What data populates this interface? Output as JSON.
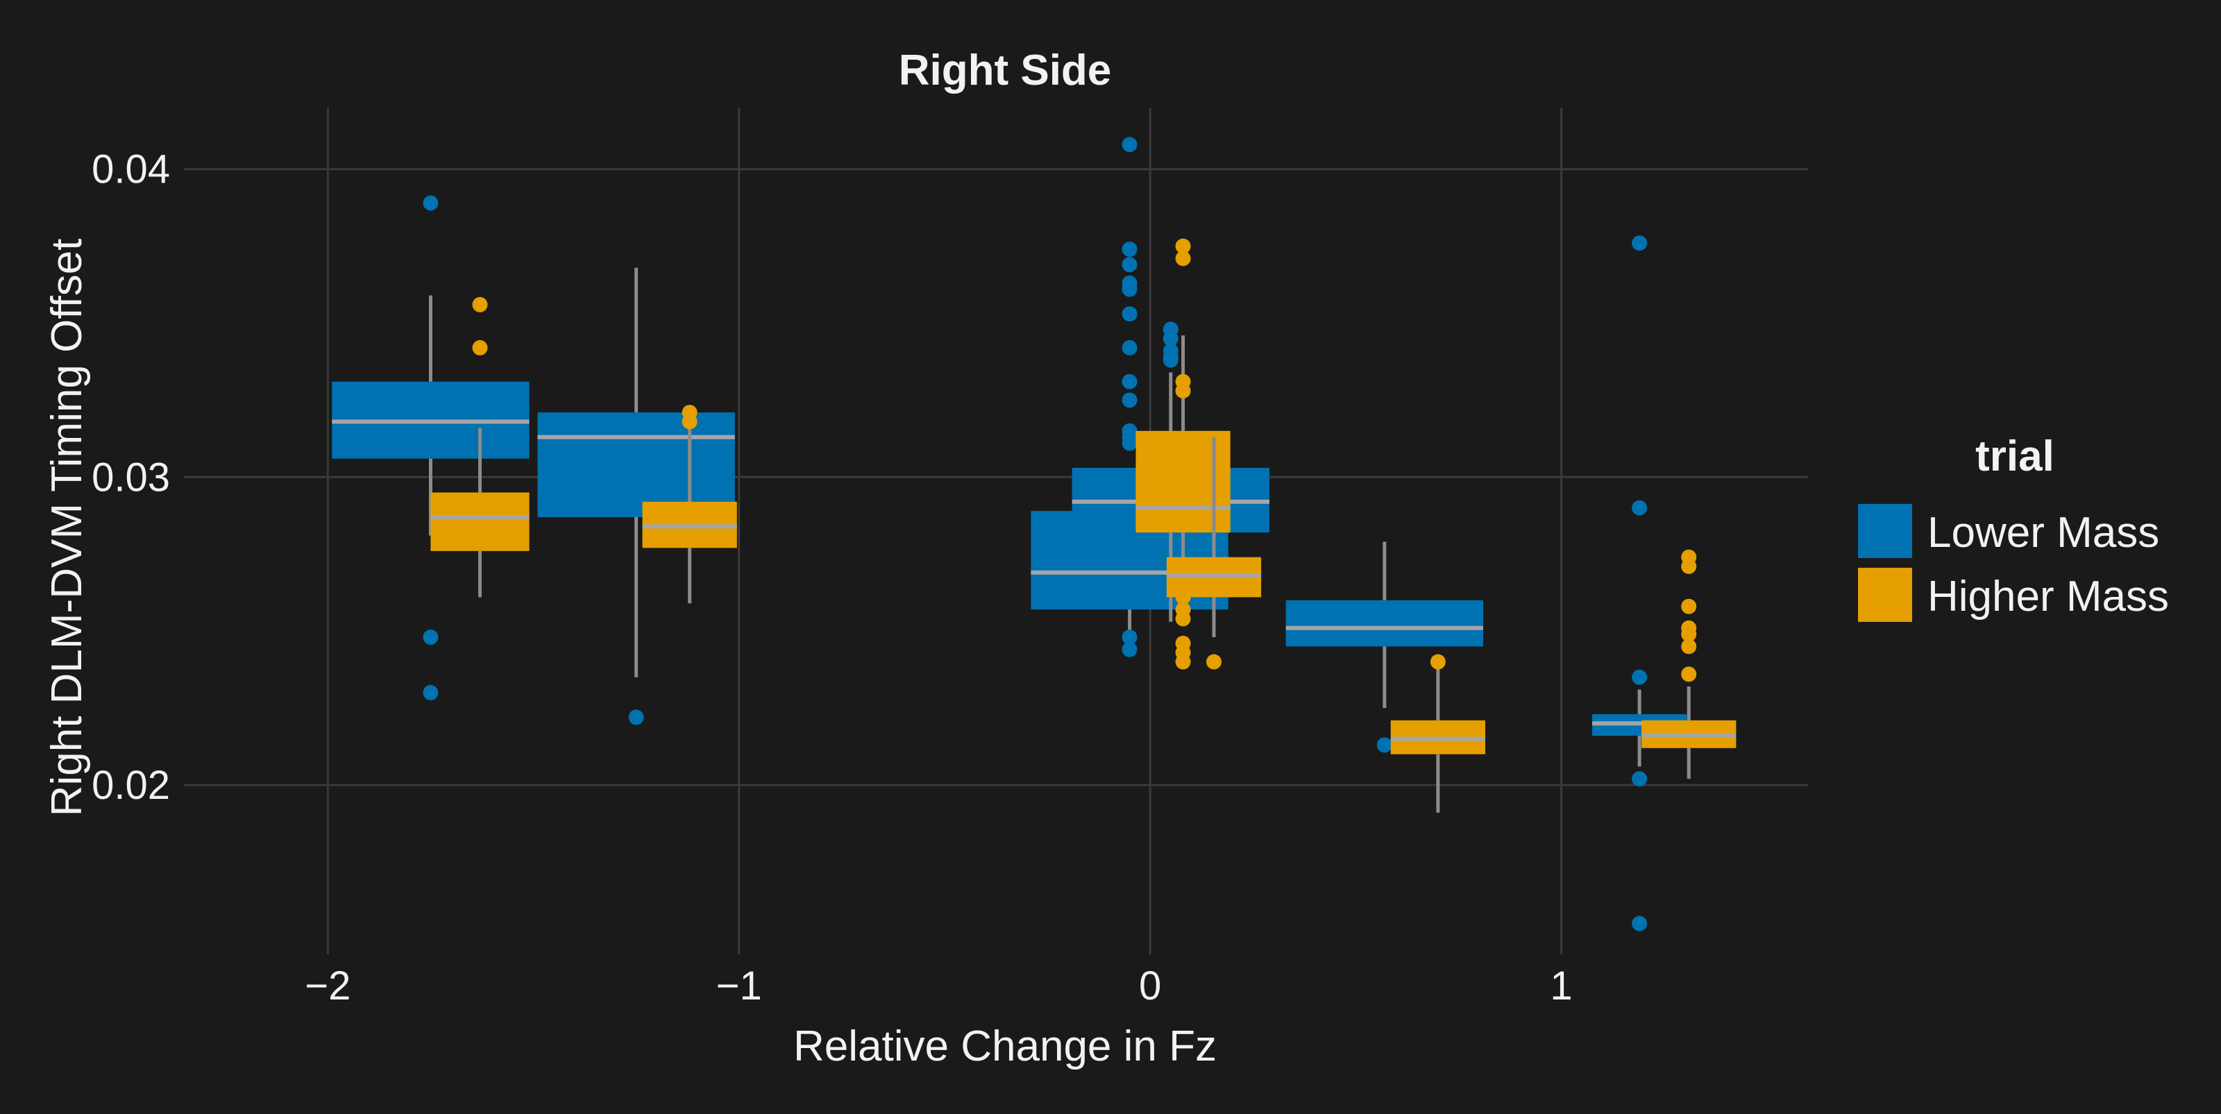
{
  "colors": {
    "background": "#1a1a1a",
    "grid": "#3a3a3a",
    "text": "#f2f2f2",
    "whisker": "#8c8c8c",
    "median": "#a6a6a6",
    "lower_mass": "#0072b2",
    "higher_mass": "#e69f00"
  },
  "chart_data": {
    "type": "boxplot",
    "title": "Right Side",
    "xlabel": "Relative Change in Fz",
    "ylabel": "Right DLM-DVM Timing Offset",
    "xlim": [
      -2.35,
      1.6
    ],
    "ylim": [
      0.0145,
      0.042
    ],
    "x_ticks": [
      -2,
      -1,
      0,
      1
    ],
    "x_tick_labels": [
      "−2",
      "−1",
      "0",
      "1"
    ],
    "y_ticks": [
      0.02,
      0.03,
      0.04
    ],
    "y_tick_labels": [
      "0.02",
      "0.03",
      "0.04"
    ],
    "grid": true,
    "legend": {
      "title": "trial",
      "position": "right",
      "entries": [
        {
          "label": "Lower Mass",
          "color_key": "lower_mass"
        },
        {
          "label": "Higher Mass",
          "color_key": "higher_mass"
        }
      ]
    },
    "groups": [
      {
        "x": -1.75,
        "width": 0.48,
        "series": "lower_mass",
        "q1": 0.0306,
        "median": 0.0318,
        "q3": 0.0331,
        "whisker_low": 0.0281,
        "whisker_high": 0.0359,
        "outliers": [
          0.0389,
          0.0248,
          0.023
        ]
      },
      {
        "x": -1.63,
        "width": 0.24,
        "series": "higher_mass",
        "q1": 0.0276,
        "median": 0.0287,
        "q3": 0.0295,
        "whisker_low": 0.0261,
        "whisker_high": 0.0316,
        "outliers": [
          0.0356,
          0.0342
        ]
      },
      {
        "x": -1.25,
        "width": 0.48,
        "series": "lower_mass",
        "q1": 0.0287,
        "median": 0.0313,
        "q3": 0.0321,
        "whisker_low": 0.0235,
        "whisker_high": 0.0368,
        "outliers": [
          0.0222
        ]
      },
      {
        "x": -1.12,
        "width": 0.23,
        "series": "higher_mass",
        "q1": 0.0277,
        "median": 0.0284,
        "q3": 0.0292,
        "whisker_low": 0.0259,
        "whisker_high": 0.0316,
        "outliers": [
          0.0321,
          0.0318
        ]
      },
      {
        "x": -0.05,
        "width": 0.48,
        "series": "lower_mass",
        "q1": 0.0257,
        "median": 0.0269,
        "q3": 0.0289,
        "whisker_low": 0.0247,
        "whisker_high": 0.0303,
        "outliers": [
          0.0408,
          0.0374,
          0.0369,
          0.0363,
          0.0361,
          0.0353,
          0.0342,
          0.0331,
          0.0325,
          0.0315,
          0.0313,
          0.0311,
          0.0248,
          0.0244
        ]
      },
      {
        "x": 0.05,
        "width": 0.48,
        "series": "lower_mass",
        "q1": 0.0282,
        "median": 0.0292,
        "q3": 0.0303,
        "whisker_low": 0.0253,
        "whisker_high": 0.0334,
        "outliers": [
          0.0348,
          0.0345,
          0.0341,
          0.0339,
          0.0338
        ]
      },
      {
        "x": 0.08,
        "width": 0.23,
        "series": "higher_mass",
        "q1": 0.0282,
        "median": 0.029,
        "q3": 0.0315,
        "whisker_low": 0.0268,
        "whisker_high": 0.0346,
        "outliers": [
          0.0375,
          0.0371,
          0.0331,
          0.0328,
          0.0261,
          0.0257,
          0.0254,
          0.0246,
          0.0243,
          0.024
        ]
      },
      {
        "x": 0.155,
        "width": 0.23,
        "series": "higher_mass",
        "q1": 0.0261,
        "median": 0.0268,
        "q3": 0.0274,
        "whisker_low": 0.0248,
        "whisker_high": 0.0313,
        "outliers": [
          0.024
        ]
      },
      {
        "x": 0.57,
        "width": 0.48,
        "series": "lower_mass",
        "q1": 0.0245,
        "median": 0.0251,
        "q3": 0.026,
        "whisker_low": 0.0225,
        "whisker_high": 0.0279,
        "outliers": [
          0.0213
        ]
      },
      {
        "x": 0.7,
        "width": 0.23,
        "series": "higher_mass",
        "q1": 0.021,
        "median": 0.0215,
        "q3": 0.0221,
        "whisker_low": 0.0191,
        "whisker_high": 0.024,
        "outliers": [
          0.024
        ]
      },
      {
        "x": 1.19,
        "width": 0.23,
        "series": "lower_mass",
        "q1": 0.0216,
        "median": 0.022,
        "q3": 0.0223,
        "whisker_low": 0.0206,
        "whisker_high": 0.0231,
        "outliers": [
          0.0376,
          0.029,
          0.0235,
          0.0202,
          0.0155
        ]
      },
      {
        "x": 1.31,
        "width": 0.23,
        "series": "higher_mass",
        "q1": 0.0212,
        "median": 0.0216,
        "q3": 0.0221,
        "whisker_low": 0.0202,
        "whisker_high": 0.0232,
        "outliers": [
          0.0274,
          0.0271,
          0.0258,
          0.0251,
          0.0249,
          0.0245,
          0.0236
        ]
      }
    ]
  }
}
